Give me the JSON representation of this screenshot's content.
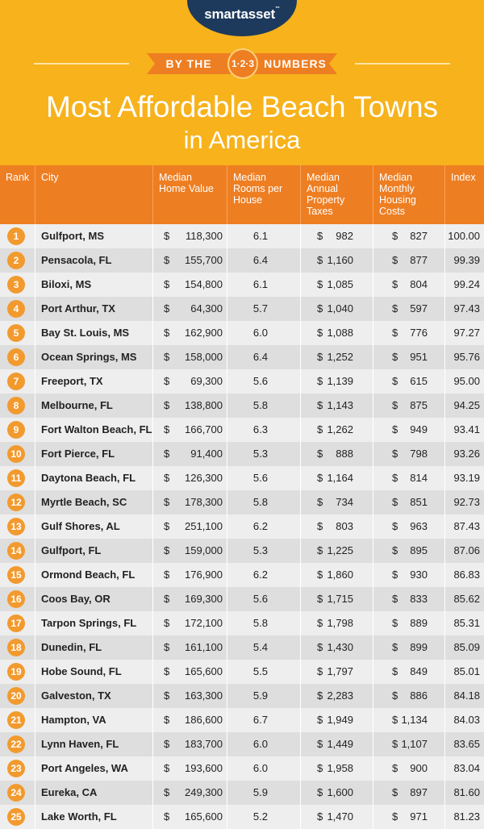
{
  "brand": {
    "name": "smartasset",
    "mark": "™"
  },
  "banner": {
    "left": "BY THE",
    "badge": "1·2·3",
    "right": "NUMBERS"
  },
  "title": {
    "line1": "Most Affordable Beach Towns",
    "line2": "in America"
  },
  "colors": {
    "header_bg": "#f7b21c",
    "accent": "#ee7e22",
    "logo_bg": "#1d3a5c"
  },
  "chart_data": {
    "type": "table",
    "title": "Most Affordable Beach Towns in America",
    "columns": [
      {
        "key": "rank",
        "label": "Rank"
      },
      {
        "key": "city",
        "label": "City"
      },
      {
        "key": "home_value",
        "label": "Median Home Value"
      },
      {
        "key": "rooms",
        "label": "Median Rooms per House"
      },
      {
        "key": "taxes",
        "label": "Median Annual Property Taxes"
      },
      {
        "key": "housing_costs",
        "label": "Median Monthly Housing Costs"
      },
      {
        "key": "index",
        "label": "Index"
      }
    ],
    "currency_symbol": "$",
    "rows": [
      {
        "rank": "1",
        "city": "Gulfport, MS",
        "home_value": "118,300",
        "rooms": "6.1",
        "taxes": "982",
        "housing_costs": "827",
        "index": "100.00"
      },
      {
        "rank": "2",
        "city": "Pensacola, FL",
        "home_value": "155,700",
        "rooms": "6.4",
        "taxes": "1,160",
        "housing_costs": "877",
        "index": "99.39"
      },
      {
        "rank": "3",
        "city": "Biloxi, MS",
        "home_value": "154,800",
        "rooms": "6.1",
        "taxes": "1,085",
        "housing_costs": "804",
        "index": "99.24"
      },
      {
        "rank": "4",
        "city": "Port Arthur, TX",
        "home_value": "64,300",
        "rooms": "5.7",
        "taxes": "1,040",
        "housing_costs": "597",
        "index": "97.43"
      },
      {
        "rank": "5",
        "city": "Bay St. Louis, MS",
        "home_value": "162,900",
        "rooms": "6.0",
        "taxes": "1,088",
        "housing_costs": "776",
        "index": "97.27"
      },
      {
        "rank": "6",
        "city": "Ocean Springs, MS",
        "home_value": "158,000",
        "rooms": "6.4",
        "taxes": "1,252",
        "housing_costs": "951",
        "index": "95.76"
      },
      {
        "rank": "7",
        "city": "Freeport, TX",
        "home_value": "69,300",
        "rooms": "5.6",
        "taxes": "1,139",
        "housing_costs": "615",
        "index": "95.00"
      },
      {
        "rank": "8",
        "city": "Melbourne, FL",
        "home_value": "138,800",
        "rooms": "5.8",
        "taxes": "1,143",
        "housing_costs": "875",
        "index": "94.25"
      },
      {
        "rank": "9",
        "city": "Fort Walton Beach, FL",
        "home_value": "166,700",
        "rooms": "6.3",
        "taxes": "1,262",
        "housing_costs": "949",
        "index": "93.41"
      },
      {
        "rank": "10",
        "city": "Fort Pierce, FL",
        "home_value": "91,400",
        "rooms": "5.3",
        "taxes": "888",
        "housing_costs": "798",
        "index": "93.26"
      },
      {
        "rank": "11",
        "city": "Daytona Beach, FL",
        "home_value": "126,300",
        "rooms": "5.6",
        "taxes": "1,164",
        "housing_costs": "814",
        "index": "93.19"
      },
      {
        "rank": "12",
        "city": "Myrtle Beach, SC",
        "home_value": "178,300",
        "rooms": "5.8",
        "taxes": "734",
        "housing_costs": "851",
        "index": "92.73"
      },
      {
        "rank": "13",
        "city": "Gulf Shores, AL",
        "home_value": "251,100",
        "rooms": "6.2",
        "taxes": "803",
        "housing_costs": "963",
        "index": "87.43"
      },
      {
        "rank": "14",
        "city": "Gulfport, FL",
        "home_value": "159,000",
        "rooms": "5.3",
        "taxes": "1,225",
        "housing_costs": "895",
        "index": "87.06"
      },
      {
        "rank": "15",
        "city": "Ormond Beach, FL",
        "home_value": "176,900",
        "rooms": "6.2",
        "taxes": "1,860",
        "housing_costs": "930",
        "index": "86.83"
      },
      {
        "rank": "16",
        "city": "Coos Bay, OR",
        "home_value": "169,300",
        "rooms": "5.6",
        "taxes": "1,715",
        "housing_costs": "833",
        "index": "85.62"
      },
      {
        "rank": "17",
        "city": "Tarpon Springs, FL",
        "home_value": "172,100",
        "rooms": "5.8",
        "taxes": "1,798",
        "housing_costs": "889",
        "index": "85.31"
      },
      {
        "rank": "18",
        "city": "Dunedin, FL",
        "home_value": "161,100",
        "rooms": "5.4",
        "taxes": "1,430",
        "housing_costs": "899",
        "index": "85.09"
      },
      {
        "rank": "19",
        "city": "Hobe Sound, FL",
        "home_value": "165,600",
        "rooms": "5.5",
        "taxes": "1,797",
        "housing_costs": "849",
        "index": "85.01"
      },
      {
        "rank": "20",
        "city": "Galveston, TX",
        "home_value": "163,300",
        "rooms": "5.9",
        "taxes": "2,283",
        "housing_costs": "886",
        "index": "84.18"
      },
      {
        "rank": "21",
        "city": "Hampton, VA",
        "home_value": "186,600",
        "rooms": "6.7",
        "taxes": "1,949",
        "housing_costs": "1,134",
        "index": "84.03"
      },
      {
        "rank": "22",
        "city": "Lynn Haven, FL",
        "home_value": "183,700",
        "rooms": "6.0",
        "taxes": "1,449",
        "housing_costs": "1,107",
        "index": "83.65"
      },
      {
        "rank": "23",
        "city": "Port Angeles, WA",
        "home_value": "193,600",
        "rooms": "6.0",
        "taxes": "1,958",
        "housing_costs": "900",
        "index": "83.04"
      },
      {
        "rank": "24",
        "city": "Eureka, CA",
        "home_value": "249,300",
        "rooms": "5.9",
        "taxes": "1,600",
        "housing_costs": "897",
        "index": "81.60"
      },
      {
        "rank": "25",
        "city": "Lake Worth, FL",
        "home_value": "165,600",
        "rooms": "5.2",
        "taxes": "1,470",
        "housing_costs": "971",
        "index": "81.23"
      }
    ]
  }
}
